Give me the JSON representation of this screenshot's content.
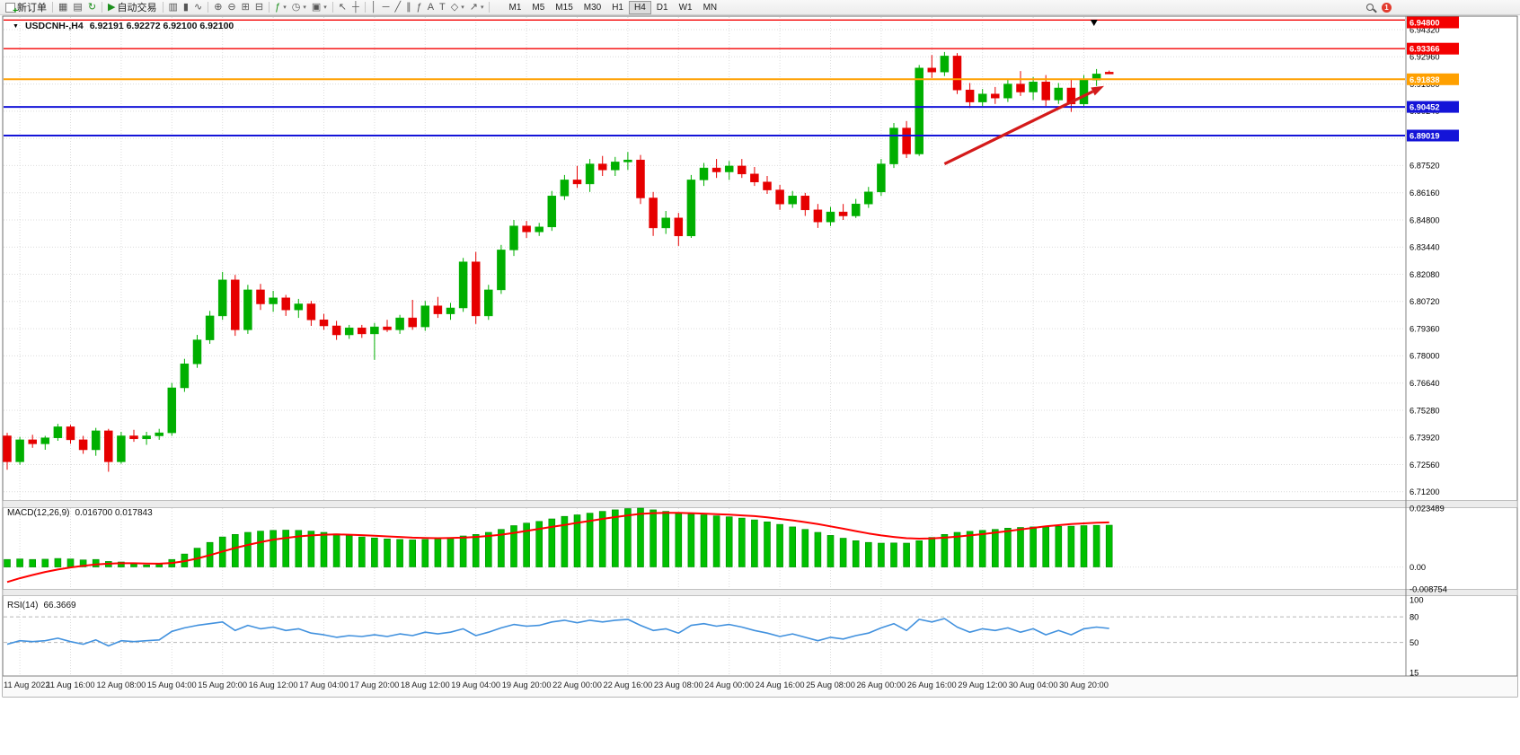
{
  "toolbar": {
    "items": [
      {
        "kind": "button",
        "name": "new-order-button",
        "icon": "new-order-icon",
        "icon_style": "newdoc",
        "label": "新订单"
      },
      {
        "kind": "sep"
      },
      {
        "kind": "button",
        "name": "charts-button",
        "icon": "chart-window-icon",
        "glyph": "▦"
      },
      {
        "kind": "button",
        "name": "profiles-button",
        "icon": "profiles-icon",
        "glyph": "▤"
      },
      {
        "kind": "button",
        "name": "refresh-button",
        "icon": "refresh-icon",
        "glyph": "↻",
        "glyph_color": "#1d8f1d"
      },
      {
        "kind": "sep"
      },
      {
        "kind": "button",
        "name": "autotrade-button",
        "icon": "autotrade-play-icon",
        "glyph": "▶",
        "glyph_color": "#1d8f1d",
        "label": "自动交易"
      },
      {
        "kind": "sep"
      },
      {
        "kind": "button",
        "name": "bar-chart-button",
        "icon": "bar-chart-icon",
        "glyph": "▥"
      },
      {
        "kind": "button",
        "name": "candlestick-button",
        "icon": "candlestick-icon",
        "glyph": "▮"
      },
      {
        "kind": "button",
        "name": "line-chart-button",
        "icon": "line-chart-icon",
        "glyph": "∿"
      },
      {
        "kind": "sep"
      },
      {
        "kind": "button",
        "name": "zoom-in-button",
        "icon": "zoom-in-icon",
        "glyph": "⊕"
      },
      {
        "kind": "button",
        "name": "zoom-out-button",
        "icon": "zoom-out-icon",
        "glyph": "⊖"
      },
      {
        "kind": "button",
        "name": "tile-windows-button",
        "icon": "tile-windows-icon",
        "glyph": "⊞"
      },
      {
        "kind": "button",
        "name": "cascade-windows-button",
        "icon": "cascade-windows-icon",
        "glyph": "⊟"
      },
      {
        "kind": "sep"
      },
      {
        "kind": "button",
        "name": "indicators-button",
        "icon": "indicators-icon",
        "glyph": "ƒ",
        "glyph_color": "#1d8f1d",
        "caret": true
      },
      {
        "kind": "button",
        "name": "periods-button",
        "icon": "clock-icon",
        "glyph": "◷",
        "caret": true
      },
      {
        "kind": "button",
        "name": "templates-button",
        "icon": "templates-icon",
        "glyph": "▣",
        "caret": true
      },
      {
        "kind": "sep"
      },
      {
        "kind": "button",
        "name": "cursor-button",
        "icon": "cursor-icon",
        "glyph": "↖"
      },
      {
        "kind": "button",
        "name": "crosshair-button",
        "icon": "crosshair-icon",
        "glyph": "┼"
      },
      {
        "kind": "sep"
      },
      {
        "kind": "button",
        "name": "vertical-line-button",
        "icon": "vertical-line-icon",
        "glyph": "│"
      },
      {
        "kind": "button",
        "name": "horizontal-line-button",
        "icon": "horizontal-line-icon",
        "glyph": "─"
      },
      {
        "kind": "button",
        "name": "trendline-button",
        "icon": "trendline-icon",
        "glyph": "╱"
      },
      {
        "kind": "button",
        "name": "channel-button",
        "icon": "channel-icon",
        "glyph": "∥"
      },
      {
        "kind": "button",
        "name": "fibonacci-button",
        "icon": "fibonacci-icon",
        "glyph": "ƒ"
      },
      {
        "kind": "button",
        "name": "text-button",
        "icon": "text-icon",
        "glyph": "A"
      },
      {
        "kind": "button",
        "name": "label-button",
        "icon": "label-icon",
        "glyph": "T"
      },
      {
        "kind": "button",
        "name": "shapes-button",
        "icon": "shapes-icon",
        "glyph": "◇",
        "caret": true
      },
      {
        "kind": "button",
        "name": "arrows-button",
        "icon": "arrows-icon",
        "glyph": "↗",
        "caret": true
      },
      {
        "kind": "sep"
      }
    ],
    "timeframes": {
      "options": [
        "M1",
        "M5",
        "M15",
        "M30",
        "H1",
        "H4",
        "D1",
        "W1",
        "MN"
      ],
      "active": "H4"
    },
    "right_icons": [
      {
        "name": "search-button",
        "icon": "search-icon",
        "style": "mag"
      },
      {
        "name": "notification-badge",
        "icon": "alert-badge-icon",
        "style": "badge",
        "text": "1"
      }
    ]
  },
  "chart_window": {
    "collapse_icon": "▼",
    "symbol_title": "USDCNH-,H4",
    "ohlc_text": "6.92191 6.92272 6.92100 6.92100"
  },
  "chart_data": {
    "type": "candlestick",
    "title": "USDCNH-,H4",
    "current_bar": {
      "open": 6.92191,
      "high": 6.92272,
      "low": 6.921,
      "close": 6.921
    },
    "colors": {
      "background": "#FFFFFF",
      "grid": "#DCDCDC",
      "up": "#00AF00",
      "down": "#E60000",
      "macd_histogram": "#00C000",
      "macd_histogram_edge": "#008A00",
      "macd_signal": "#FF0000",
      "rsi_line": "#4191DE",
      "level_red": "#F40000",
      "level_blue": "#1414D8",
      "level_orange": "#FFA000",
      "arrow": "#D41A1A"
    },
    "price_axis": {
      "range": [
        6.70787,
        6.94949
      ],
      "labels": [
        "6.94320",
        "6.92960",
        "6.91600",
        "6.90240",
        "6.88880",
        "6.87520",
        "6.86160",
        "6.84800",
        "6.83440",
        "6.82080",
        "6.80720",
        "6.79360",
        "6.78000",
        "6.76640",
        "6.75280",
        "6.73920",
        "6.72560",
        "6.71200"
      ]
    },
    "time_axis": {
      "first_label_candle_index": 1,
      "candles_per_label": 4,
      "labels": [
        "11 Aug 2022",
        "11 Aug 16:00",
        "12 Aug 08:00",
        "15 Aug 04:00",
        "15 Aug 20:00",
        "16 Aug 12:00",
        "17 Aug 04:00",
        "17 Aug 20:00",
        "18 Aug 12:00",
        "19 Aug 04:00",
        "19 Aug 20:00",
        "22 Aug 00:00",
        "22 Aug 16:00",
        "23 Aug 08:00",
        "24 Aug 00:00",
        "24 Aug 16:00",
        "25 Aug 08:00",
        "26 Aug 00:00",
        "26 Aug 16:00",
        "29 Aug 12:00",
        "30 Aug 04:00",
        "30 Aug 20:00"
      ]
    },
    "price_levels": [
      {
        "label": "6.94800",
        "price": 6.948,
        "color": "#F40000",
        "width": 1.4
      },
      {
        "label": "6.93366",
        "price": 6.93366,
        "color": "#F40000",
        "width": 1.4
      },
      {
        "label": "6.91838",
        "price": 6.91838,
        "color": "#FFA000",
        "width": 2
      },
      {
        "label": "6.90452",
        "price": 6.90452,
        "color": "#1414D8",
        "width": 2
      },
      {
        "label": "6.89019",
        "price": 6.89019,
        "color": "#1414D8",
        "width": 2
      }
    ],
    "candles": [
      [
        6.74,
        6.7415,
        6.723,
        6.727
      ],
      [
        6.727,
        6.7395,
        6.7255,
        6.738
      ],
      [
        6.738,
        6.7405,
        6.734,
        6.736
      ],
      [
        6.736,
        6.74,
        6.733,
        6.739
      ],
      [
        6.739,
        6.746,
        6.7375,
        6.7445
      ],
      [
        6.7445,
        6.7455,
        6.736,
        6.738
      ],
      [
        6.738,
        6.74,
        6.731,
        6.733
      ],
      [
        6.733,
        6.744,
        6.73,
        6.7425
      ],
      [
        6.7425,
        6.7435,
        6.722,
        6.727
      ],
      [
        6.727,
        6.742,
        6.726,
        6.74
      ],
      [
        6.74,
        6.743,
        6.737,
        6.7385
      ],
      [
        6.7385,
        6.742,
        6.7355,
        6.74
      ],
      [
        6.74,
        6.7435,
        6.738,
        6.7415
      ],
      [
        6.7415,
        6.7665,
        6.74,
        6.764
      ],
      [
        6.764,
        6.7785,
        6.762,
        6.776
      ],
      [
        6.776,
        6.7905,
        6.774,
        6.788
      ],
      [
        6.788,
        6.8025,
        6.786,
        6.8
      ],
      [
        6.8,
        6.822,
        6.798,
        6.818
      ],
      [
        6.818,
        6.8205,
        6.79,
        6.793
      ],
      [
        6.793,
        6.8155,
        6.791,
        6.813
      ],
      [
        6.813,
        6.816,
        6.803,
        6.806
      ],
      [
        6.806,
        6.8125,
        6.802,
        6.809
      ],
      [
        6.809,
        6.8105,
        6.8,
        6.803
      ],
      [
        6.803,
        6.8085,
        6.799,
        6.806
      ],
      [
        6.806,
        6.8075,
        6.795,
        6.798
      ],
      [
        6.798,
        6.801,
        6.793,
        6.795
      ],
      [
        6.795,
        6.7975,
        6.788,
        6.7905
      ],
      [
        6.7905,
        6.7955,
        6.7885,
        6.794
      ],
      [
        6.794,
        6.7955,
        6.789,
        6.791
      ],
      [
        6.791,
        6.7965,
        6.778,
        6.7945
      ],
      [
        6.7945,
        6.798,
        6.792,
        6.793
      ],
      [
        6.793,
        6.8005,
        6.791,
        6.799
      ],
      [
        6.799,
        6.808,
        6.793,
        6.7945
      ],
      [
        6.7945,
        6.8075,
        6.7925,
        6.805
      ],
      [
        6.805,
        6.8095,
        6.799,
        6.801
      ],
      [
        6.801,
        6.8065,
        6.798,
        6.804
      ],
      [
        6.804,
        6.829,
        6.802,
        6.827
      ],
      [
        6.827,
        6.832,
        6.796,
        6.8
      ],
      [
        6.8,
        6.8155,
        6.798,
        6.813
      ],
      [
        6.813,
        6.8355,
        6.811,
        6.833
      ],
      [
        6.833,
        6.848,
        6.83,
        6.845
      ],
      [
        6.845,
        6.8475,
        6.839,
        6.842
      ],
      [
        6.842,
        6.8465,
        6.84,
        6.8445
      ],
      [
        6.8445,
        6.8625,
        6.8425,
        6.86
      ],
      [
        6.86,
        6.8705,
        6.858,
        6.868
      ],
      [
        6.868,
        6.875,
        6.864,
        6.866
      ],
      [
        6.866,
        6.8785,
        6.862,
        6.876
      ],
      [
        6.876,
        6.88,
        6.87,
        6.873
      ],
      [
        6.873,
        6.8795,
        6.87,
        6.877
      ],
      [
        6.877,
        6.882,
        6.873,
        6.878
      ],
      [
        6.878,
        6.8805,
        6.856,
        6.859
      ],
      [
        6.859,
        6.862,
        6.84,
        6.844
      ],
      [
        6.844,
        6.8525,
        6.841,
        6.849
      ],
      [
        6.849,
        6.8515,
        6.835,
        6.84
      ],
      [
        6.84,
        6.8705,
        6.839,
        6.868
      ],
      [
        6.868,
        6.8765,
        6.865,
        6.874
      ],
      [
        6.874,
        6.8785,
        6.869,
        6.872
      ],
      [
        6.872,
        6.8775,
        6.868,
        6.875
      ],
      [
        6.875,
        6.8785,
        6.869,
        6.871
      ],
      [
        6.871,
        6.8745,
        6.865,
        6.867
      ],
      [
        6.867,
        6.87,
        6.861,
        6.863
      ],
      [
        6.863,
        6.8655,
        6.853,
        6.856
      ],
      [
        6.856,
        6.8625,
        6.854,
        6.86
      ],
      [
        6.86,
        6.8615,
        6.85,
        6.853
      ],
      [
        6.853,
        6.856,
        6.844,
        6.847
      ],
      [
        6.847,
        6.8545,
        6.845,
        6.852
      ],
      [
        6.852,
        6.856,
        6.848,
        6.85
      ],
      [
        6.85,
        6.8585,
        6.849,
        6.856
      ],
      [
        6.856,
        6.8645,
        6.854,
        6.862
      ],
      [
        6.862,
        6.8785,
        6.86,
        6.876
      ],
      [
        6.876,
        6.8965,
        6.874,
        6.894
      ],
      [
        6.894,
        6.8975,
        6.879,
        6.881
      ],
      [
        6.881,
        6.9255,
        6.88,
        6.924
      ],
      [
        6.924,
        6.9305,
        6.919,
        6.922
      ],
      [
        6.922,
        6.932,
        6.92,
        6.93
      ],
      [
        6.93,
        6.9315,
        6.911,
        6.913
      ],
      [
        6.913,
        6.9165,
        6.904,
        6.907
      ],
      [
        6.907,
        6.9135,
        6.905,
        6.911
      ],
      [
        6.911,
        6.9145,
        6.906,
        6.909
      ],
      [
        6.909,
        6.9185,
        6.907,
        6.916
      ],
      [
        6.916,
        6.9225,
        6.91,
        6.912
      ],
      [
        6.912,
        6.9195,
        6.908,
        6.917
      ],
      [
        6.917,
        6.9205,
        6.905,
        6.908
      ],
      [
        6.908,
        6.9165,
        6.906,
        6.914
      ],
      [
        6.914,
        6.9185,
        6.902,
        6.906
      ],
      [
        6.906,
        6.9205,
        6.905,
        6.918
      ],
      [
        6.918,
        6.9235,
        6.915,
        6.921
      ],
      [
        6.92191,
        6.92272,
        6.921,
        6.921
      ]
    ],
    "macd": {
      "label": "MACD(12,26,9)",
      "values_text": "0.016700 0.017843",
      "range": [
        -0.008754,
        0.023489
      ],
      "axis_labels": [
        {
          "text": "0.023489",
          "value": 0.023489
        },
        {
          "text": "0.00",
          "value": 0
        },
        {
          "text": "-0.008754",
          "value": -0.008754
        }
      ],
      "histogram": [
        0.003,
        0.0032,
        0.003,
        0.0031,
        0.0034,
        0.0032,
        0.0028,
        0.003,
        0.0022,
        0.002,
        0.0012,
        0.0008,
        0.001,
        0.003,
        0.0052,
        0.0075,
        0.0098,
        0.012,
        0.013,
        0.0138,
        0.0143,
        0.0146,
        0.0147,
        0.0146,
        0.0143,
        0.0138,
        0.0132,
        0.0126,
        0.012,
        0.0116,
        0.0112,
        0.011,
        0.0108,
        0.011,
        0.0113,
        0.0117,
        0.0124,
        0.013,
        0.0138,
        0.015,
        0.0165,
        0.0175,
        0.0182,
        0.0192,
        0.0202,
        0.0208,
        0.0215,
        0.0222,
        0.0228,
        0.0233,
        0.0235,
        0.0228,
        0.0222,
        0.0214,
        0.021,
        0.0208,
        0.0204,
        0.02,
        0.0195,
        0.0188,
        0.018,
        0.017,
        0.016,
        0.015,
        0.0138,
        0.0126,
        0.0115,
        0.0105,
        0.0098,
        0.0095,
        0.0096,
        0.0095,
        0.0105,
        0.0118,
        0.013,
        0.0138,
        0.0142,
        0.0146,
        0.015,
        0.0155,
        0.0158,
        0.016,
        0.016,
        0.0162,
        0.0163,
        0.0165,
        0.0166,
        0.0167
      ],
      "signal": [
        -0.006,
        -0.0045,
        -0.0032,
        -0.002,
        -0.001,
        -0.0002,
        0.0005,
        0.001,
        0.0013,
        0.0015,
        0.0015,
        0.0014,
        0.0013,
        0.0016,
        0.0023,
        0.0034,
        0.0047,
        0.0062,
        0.0076,
        0.0088,
        0.0099,
        0.0109,
        0.0116,
        0.0122,
        0.0126,
        0.0129,
        0.013,
        0.0129,
        0.0127,
        0.0125,
        0.0122,
        0.012,
        0.0117,
        0.0116,
        0.0115,
        0.0116,
        0.0117,
        0.012,
        0.0124,
        0.0129,
        0.0136,
        0.0144,
        0.0152,
        0.016,
        0.0168,
        0.0176,
        0.0184,
        0.0192,
        0.0199,
        0.0206,
        0.0212,
        0.0215,
        0.0216,
        0.0216,
        0.0215,
        0.0213,
        0.0211,
        0.0209,
        0.0206,
        0.0203,
        0.0198,
        0.0192,
        0.0186,
        0.0179,
        0.0171,
        0.0162,
        0.0153,
        0.0143,
        0.0134,
        0.0126,
        0.012,
        0.0115,
        0.0113,
        0.0114,
        0.0117,
        0.0121,
        0.0126,
        0.0131,
        0.0137,
        0.0143,
        0.015,
        0.0156,
        0.0162,
        0.0167,
        0.0171,
        0.0174,
        0.0177,
        0.0178
      ]
    },
    "rsi": {
      "label": "RSI(14)",
      "value_text": "66.3669",
      "range": [
        15,
        100
      ],
      "axis_labels": [
        {
          "text": "100",
          "value": 100
        },
        {
          "text": "80",
          "value": 80
        },
        {
          "text": "50",
          "value": 50
        },
        {
          "text": "15",
          "value": 15
        }
      ],
      "levels": [
        80,
        50
      ],
      "values": [
        48,
        52,
        51,
        52,
        55,
        51,
        48,
        53,
        46,
        52,
        51,
        52,
        53,
        63,
        67,
        70,
        72,
        74,
        64,
        70,
        66,
        68,
        64,
        66,
        61,
        59,
        56,
        58,
        57,
        59,
        57,
        60,
        58,
        62,
        60,
        62,
        66,
        58,
        62,
        67,
        71,
        69,
        70,
        74,
        76,
        73,
        76,
        74,
        76,
        77,
        70,
        64,
        66,
        61,
        70,
        72,
        69,
        71,
        68,
        64,
        61,
        57,
        60,
        56,
        52,
        56,
        54,
        58,
        61,
        67,
        72,
        64,
        77,
        74,
        78,
        68,
        62,
        66,
        64,
        67,
        62,
        66,
        59,
        64,
        59,
        66,
        68,
        66.37
      ]
    },
    "annotations": {
      "trend_arrow": {
        "shape": "arrow",
        "color": "#D41A1A",
        "from_index": 74,
        "from_price": 6.876,
        "to_index": 86.6,
        "to_price": 6.915
      },
      "top_marker": {
        "shape": "down-triangle",
        "color": "#000000",
        "index": 85.8,
        "price": 6.9468
      }
    }
  }
}
